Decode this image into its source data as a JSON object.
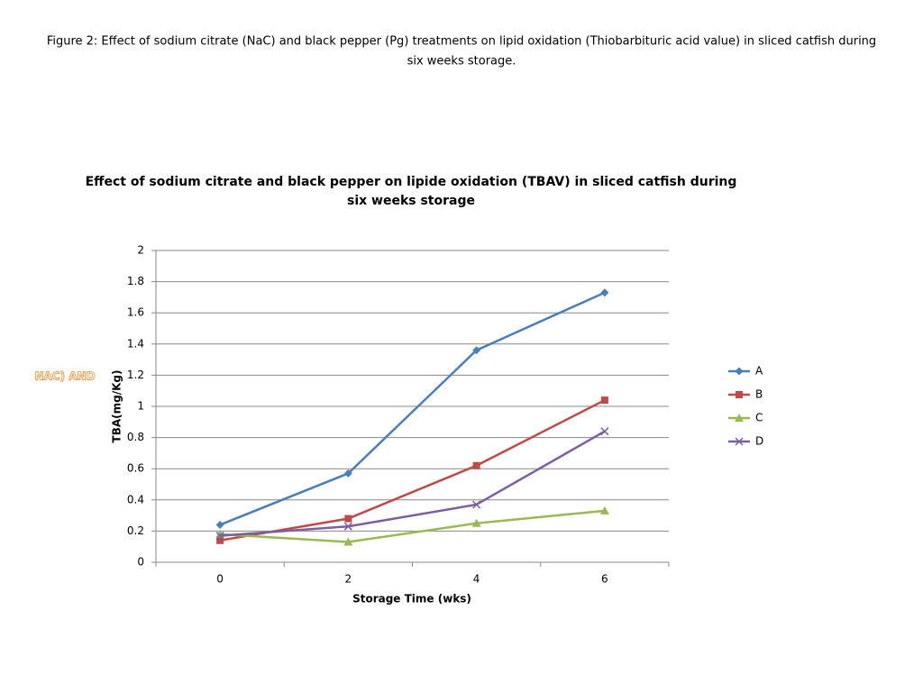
{
  "caption": [
    "Figure 2: Effect of sodium citrate (NaC) and black pepper (Pg) treatments on lipid oxidation    (Thiobarbituric acid value) in sliced catfish during",
    "six weeks storage."
  ],
  "side_label": "NAC) AND",
  "chart_data": {
    "type": "line",
    "title": [
      "Effect of sodium citrate and black pepper on lipide oxidation (TBAV) in sliced catfish during",
      "six weeks storage"
    ],
    "x_label": "Storage Time (wks)",
    "y_label": "TBA(mg/Kg)",
    "categories": [
      "0",
      "2",
      "4",
      "6"
    ],
    "series": [
      {
        "name": "A",
        "color": "#4a7ebb",
        "marker": "diamond",
        "values": [
          0.24,
          0.57,
          1.36,
          1.73
        ]
      },
      {
        "name": "B",
        "color": "#be4b48",
        "marker": "square",
        "values": [
          0.14,
          0.28,
          0.62,
          1.04
        ]
      },
      {
        "name": "C",
        "color": "#98b954",
        "marker": "triangle",
        "values": [
          0.18,
          0.13,
          0.25,
          0.33
        ]
      },
      {
        "name": "D",
        "color": "#7d5fa0",
        "marker": "x",
        "values": [
          0.17,
          0.23,
          0.37,
          0.84
        ]
      }
    ],
    "ylim": [
      0,
      2
    ],
    "yticks": [
      0,
      0.2,
      0.4,
      0.6,
      0.8,
      1,
      1.2,
      1.4,
      1.6,
      1.8,
      2
    ],
    "grid": true,
    "legend": "right"
  }
}
